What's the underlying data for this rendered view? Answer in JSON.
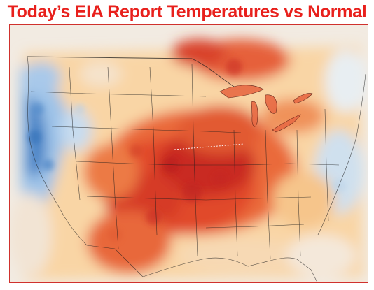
{
  "title": "Today’s EIA Report Temperatures vs Normal",
  "map": {
    "region": "Contiguous United States",
    "variable": "Temperature anomaly vs normal",
    "colors": {
      "much_colder": "#2e6fb8",
      "colder": "#8fb9e3",
      "near_normal": "#f4ede2",
      "warmer": "#f8c486",
      "much_warmer": "#e8552e",
      "extreme_warm": "#b81f1f",
      "frame": "#d0312d",
      "title": "#e8201c"
    }
  }
}
